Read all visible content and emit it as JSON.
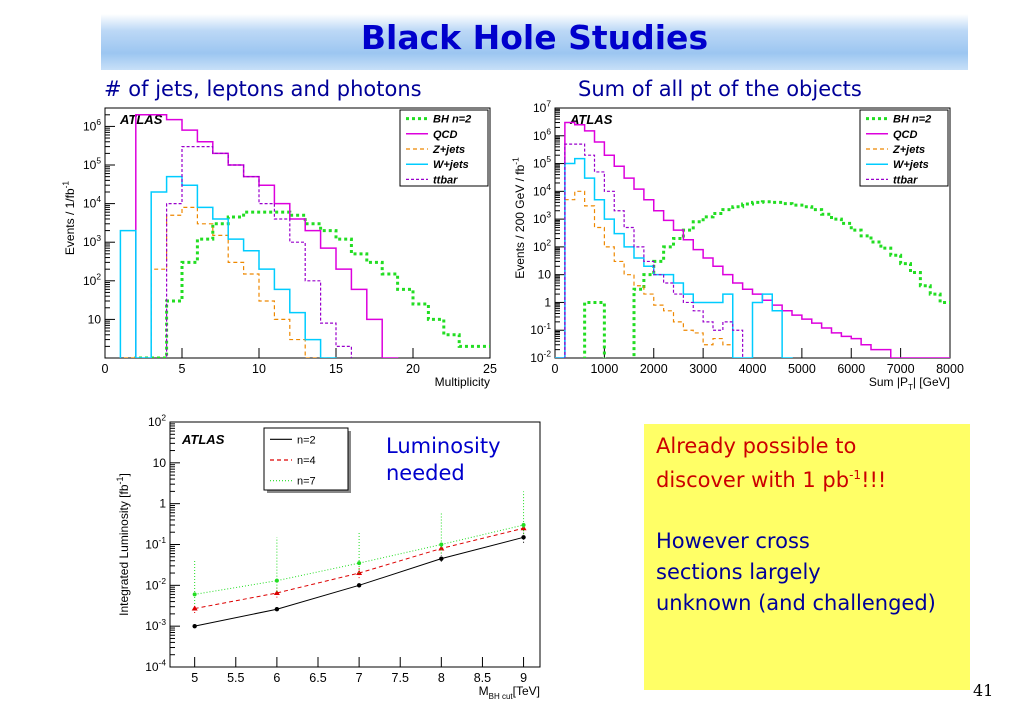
{
  "slide": {
    "title": "Black Hole Studies",
    "caption_left": "# of jets, leptons and photons",
    "caption_right": "Sum of all pt of the objects",
    "lum_label_line1": "Luminosity",
    "lum_label_line2": "needed",
    "note_line1": "Already possible to",
    "note_line2_pre": "discover with 1 pb",
    "note_line2_sup": "-1",
    "note_line2_post": "!!!",
    "note_blue_1": "However cross",
    "note_blue_2": "sections largely",
    "note_blue_3": "unknown (and challenged)",
    "page_number": "41"
  },
  "chart_data": [
    {
      "type": "line",
      "subtype": "histogram",
      "atlas_label": "ATLAS",
      "ylabel": "Events /   1/fb",
      "ylabel_sup": "-1",
      "xlabel": "Multiplicity",
      "log_y": true,
      "xlim": [
        0,
        25
      ],
      "ylim": [
        1,
        3000000
      ],
      "x_ticks": [
        "0",
        "5",
        "10",
        "15",
        "20",
        "25"
      ],
      "y_ticks": [
        {
          "v": 10,
          "t": "10"
        },
        {
          "v": 100,
          "t": "10",
          "sup": "2"
        },
        {
          "v": 1000,
          "t": "10",
          "sup": "3"
        },
        {
          "v": 10000,
          "t": "10",
          "sup": "4"
        },
        {
          "v": 100000,
          "t": "10",
          "sup": "5"
        },
        {
          "v": 1000000,
          "t": "10",
          "sup": "6"
        }
      ],
      "legend_position": "top-right",
      "bin_edges": [
        0,
        1,
        2,
        3,
        4,
        5,
        6,
        7,
        8,
        9,
        10,
        11,
        12,
        13,
        14,
        15,
        16,
        17,
        18,
        19,
        20,
        21,
        22,
        23,
        24,
        25
      ],
      "series": [
        {
          "name": "BH n=2",
          "color": "#22dd22",
          "dash": "3,3",
          "width": 3,
          "values": [
            0,
            0,
            0.5,
            0.5,
            30,
            300,
            1200,
            3000,
            4500,
            6000,
            6000,
            6000,
            5000,
            3000,
            2000,
            1200,
            500,
            300,
            150,
            60,
            25,
            10,
            4,
            2,
            2
          ]
        },
        {
          "name": "QCD",
          "color": "#dd00dd",
          "dash": "",
          "width": 1.5,
          "values": [
            0,
            0,
            2000000,
            2000000,
            1500000,
            800000,
            400000,
            200000,
            100000,
            50000,
            30000,
            10000,
            4000,
            2000,
            700,
            200,
            60,
            10,
            1,
            0,
            0,
            0,
            0,
            0,
            0
          ]
        },
        {
          "name": "Z+jets",
          "color": "#ee8800",
          "dash": "4,3",
          "width": 1.2,
          "values": [
            0,
            0.5,
            0.5,
            200,
            5000,
            8000,
            3000,
            1500,
            300,
            150,
            30,
            10,
            3,
            1,
            0.5,
            0,
            0,
            0,
            0,
            0,
            0,
            0,
            0,
            0,
            0
          ]
        },
        {
          "name": "W+jets",
          "color": "#00ccff",
          "dash": "",
          "width": 1.5,
          "values": [
            0,
            2000,
            0.5,
            20000,
            50000,
            30000,
            8000,
            4000,
            1200,
            600,
            200,
            60,
            15,
            3,
            1,
            0,
            0,
            0,
            0,
            0,
            0,
            0,
            0,
            0,
            0
          ]
        },
        {
          "name": "ttbar",
          "color": "#9900cc",
          "dash": "3,2",
          "width": 1.2,
          "values": [
            0,
            0,
            0,
            0,
            10000,
            300000,
            300000,
            200000,
            100000,
            50000,
            10000,
            4000,
            1000,
            100,
            8,
            2,
            0,
            0,
            0,
            0,
            0,
            0,
            0,
            0,
            0
          ]
        }
      ]
    },
    {
      "type": "line",
      "subtype": "histogram",
      "atlas_label": "ATLAS",
      "ylabel": "Events /  200 GeV / fb",
      "ylabel_sup": "-1",
      "xlabel": "Sum |P",
      "xlabel_sub": "T",
      "xlabel_post": "| [GeV]",
      "log_y": true,
      "xlim": [
        0,
        8000
      ],
      "ylim": [
        0.01,
        10000000
      ],
      "x_ticks": [
        "0",
        "1000",
        "2000",
        "3000",
        "4000",
        "5000",
        "6000",
        "7000",
        "8000"
      ],
      "y_ticks": [
        {
          "v": 0.01,
          "t": "10",
          "sup": "-2"
        },
        {
          "v": 0.1,
          "t": "10",
          "sup": "-1"
        },
        {
          "v": 1,
          "t": "1"
        },
        {
          "v": 10,
          "t": "10"
        },
        {
          "v": 100,
          "t": "10",
          "sup": "2"
        },
        {
          "v": 1000,
          "t": "10",
          "sup": "3"
        },
        {
          "v": 10000,
          "t": "10",
          "sup": "4"
        },
        {
          "v": 100000,
          "t": "10",
          "sup": "5"
        },
        {
          "v": 1000000,
          "t": "10",
          "sup": "6"
        },
        {
          "v": 10000000,
          "t": "10",
          "sup": "7"
        }
      ],
      "legend_position": "top-right",
      "bin_edges": [
        0,
        200,
        400,
        600,
        800,
        1000,
        1200,
        1400,
        1600,
        1800,
        2000,
        2200,
        2400,
        2600,
        2800,
        3000,
        3200,
        3400,
        3600,
        3800,
        4000,
        4200,
        4400,
        4600,
        4800,
        5000,
        5200,
        5400,
        5600,
        5800,
        6000,
        6200,
        6400,
        6600,
        6800,
        7000,
        7200,
        7400,
        7600,
        7800,
        8000
      ],
      "series": [
        {
          "name": "BH n=2",
          "color": "#22dd22",
          "dash": "3,3",
          "width": 3,
          "values": [
            0,
            0,
            0,
            1,
            1,
            0,
            0,
            0,
            3,
            10,
            30,
            100,
            200,
            400,
            800,
            1200,
            1600,
            2200,
            2800,
            3500,
            4000,
            4200,
            4000,
            3600,
            3200,
            2800,
            2200,
            1500,
            1000,
            700,
            400,
            250,
            150,
            90,
            50,
            25,
            12,
            4,
            2,
            1
          ]
        },
        {
          "name": "QCD",
          "color": "#dd00dd",
          "dash": "",
          "width": 1.5,
          "values": [
            0.01,
            3000000,
            2500000,
            1500000,
            600000,
            200000,
            80000,
            30000,
            12000,
            5000,
            2000,
            900,
            400,
            180,
            80,
            40,
            20,
            10,
            5,
            3,
            2,
            1.2,
            0.8,
            0.5,
            0.35,
            0.25,
            0.18,
            0.12,
            0.08,
            0.06,
            0.05,
            0.03,
            0.02,
            0.02,
            0.01,
            0.01,
            0.01,
            0.01,
            0.01,
            0.01
          ]
        },
        {
          "name": "Z+jets",
          "color": "#ee8800",
          "dash": "4,3",
          "width": 1.2,
          "values": [
            0.01,
            5000,
            10000,
            3000,
            500,
            100,
            30,
            10,
            4,
            2,
            0.8,
            0.5,
            0.2,
            0.1,
            0.08,
            0.03,
            0.05,
            0.03,
            0,
            0,
            0,
            0,
            0,
            0,
            0,
            0,
            0,
            0,
            0,
            0,
            0,
            0,
            0,
            0,
            0,
            0,
            0,
            0,
            0,
            0
          ]
        },
        {
          "name": "W+jets",
          "color": "#00ccff",
          "dash": "",
          "width": 1.5,
          "values": [
            0.01,
            100000,
            150000,
            30000,
            5000,
            1000,
            300,
            100,
            40,
            20,
            10,
            10,
            5,
            2,
            1,
            1,
            1,
            2,
            0.01,
            0.01,
            1,
            2,
            0.5,
            0.01,
            0,
            0,
            0,
            0,
            0,
            0,
            0,
            0,
            0,
            0,
            0,
            0,
            0,
            0,
            0,
            0
          ]
        },
        {
          "name": "ttbar",
          "color": "#9900cc",
          "dash": "3,2",
          "width": 1.2,
          "values": [
            0,
            500000,
            500000,
            200000,
            50000,
            10000,
            2000,
            500,
            100,
            30,
            10,
            5,
            2,
            1,
            0.5,
            0.2,
            0.1,
            0.2,
            0.1,
            0,
            0,
            0,
            0,
            0,
            0,
            0,
            0,
            0,
            0,
            0,
            0,
            0,
            0,
            0,
            0,
            0,
            0,
            0,
            0,
            0
          ]
        }
      ]
    },
    {
      "type": "line",
      "atlas_label": "ATLAS",
      "ylabel": "Integrated Luminosity [fb",
      "ylabel_sup": "-1",
      "ylabel_post": "]",
      "xlabel": "M",
      "xlabel_sub": "BH cut",
      "xlabel_post": "[TeV]",
      "log_y": true,
      "xlim": [
        4.7,
        9.2
      ],
      "ylim": [
        0.0001,
        100
      ],
      "x_ticks": [
        "5",
        "5.5",
        "6",
        "6.5",
        "7",
        "7.5",
        "8",
        "8.5",
        "9"
      ],
      "y_ticks": [
        {
          "v": 0.0001,
          "t": "10",
          "sup": "-4"
        },
        {
          "v": 0.001,
          "t": "10",
          "sup": "-3"
        },
        {
          "v": 0.01,
          "t": "10",
          "sup": "-2"
        },
        {
          "v": 0.1,
          "t": "10",
          "sup": "-1"
        },
        {
          "v": 1,
          "t": "1"
        },
        {
          "v": 10,
          "t": "10"
        },
        {
          "v": 100,
          "t": "10",
          "sup": "2"
        }
      ],
      "legend_position": "top-left",
      "x": [
        5,
        6,
        7,
        8,
        9
      ],
      "series": [
        {
          "name": "n=2",
          "color": "#000000",
          "dash": "",
          "marker": "circle",
          "values": [
            0.001,
            0.0026,
            0.01,
            0.045,
            0.15
          ],
          "err_lo": [
            0.001,
            0.0026,
            0.009,
            0.038,
            0.11
          ],
          "err_hi": [
            0.001,
            0.0026,
            0.011,
            0.055,
            0.2
          ]
        },
        {
          "name": "n=4",
          "color": "#dd0000",
          "dash": "4,3",
          "marker": "triangle",
          "values": [
            0.0027,
            0.0065,
            0.02,
            0.08,
            0.25
          ],
          "err_lo": [
            0.0021,
            0.005,
            0.015,
            0.06,
            0.18
          ],
          "err_hi": [
            0.0034,
            0.009,
            0.028,
            0.11,
            0.35
          ]
        },
        {
          "name": "n=7",
          "color": "#22dd22",
          "dash": "1,2",
          "marker": "star",
          "values": [
            0.006,
            0.013,
            0.035,
            0.1,
            0.3
          ],
          "err_lo": [
            0.0035,
            0.007,
            0.02,
            0.06,
            0.18
          ],
          "err_hi": [
            0.04,
            0.15,
            0.2,
            0.6,
            2
          ]
        }
      ]
    }
  ]
}
